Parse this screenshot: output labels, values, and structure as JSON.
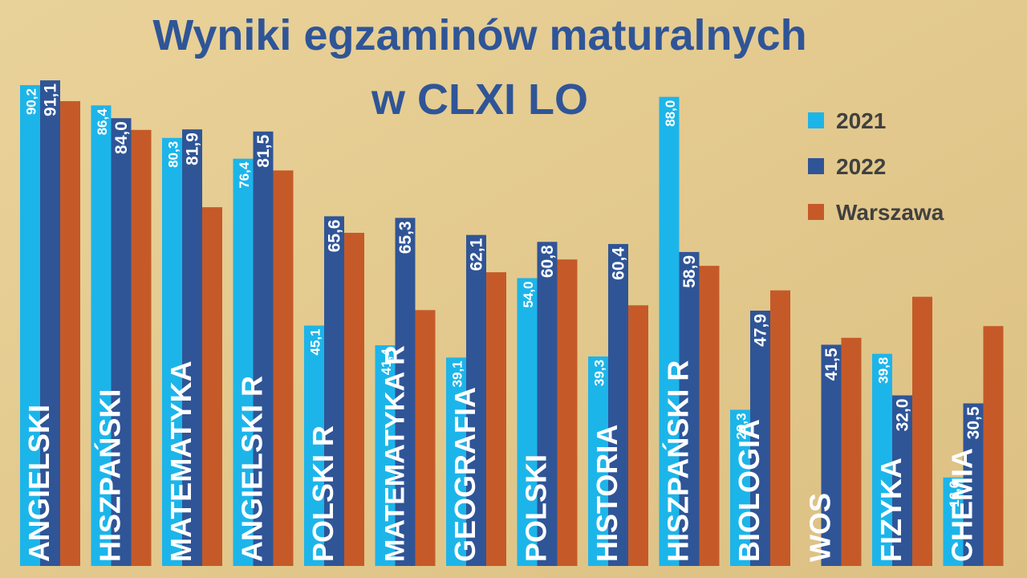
{
  "chart_data": {
    "type": "bar",
    "title_lines": [
      "Wyniki egzaminów maturalnych",
      "w CLXI LO"
    ],
    "categories": [
      "ANGIELSKI",
      "HISZPAŃSKI",
      "MATEMATYKA",
      "ANGIELSKI R",
      "POLSKI R",
      "MATEMATYKA R",
      "GEOGRAFIA",
      "POLSKI",
      "HISTORIA",
      "HISZPAŃSKI R",
      "BIOLOGIA",
      "WOS",
      "FIZYKA",
      "CHEMIA"
    ],
    "series": [
      {
        "name": "2021",
        "color": "#1cb5ea",
        "values": [
          90.2,
          86.4,
          80.3,
          76.4,
          45.1,
          41.4,
          39.1,
          54.0,
          39.3,
          88.0,
          29.3,
          null,
          39.8,
          16.6
        ],
        "value_labels": [
          "90,2",
          "86,4",
          "80,3",
          "76,4",
          "45,1",
          "41,4",
          "39,1",
          "54,0",
          "39,3",
          "88,0",
          "29,3",
          null,
          "39,8",
          "16,6"
        ]
      },
      {
        "name": "2022",
        "color": "#2f5597",
        "values": [
          91.1,
          84.0,
          81.9,
          81.5,
          65.6,
          65.3,
          62.1,
          60.8,
          60.4,
          58.9,
          47.9,
          41.5,
          32.0,
          30.5
        ],
        "value_labels": [
          "91,1",
          "84,0",
          "81,9",
          "81,5",
          "65,6",
          "65,3",
          "62,1",
          "60,8",
          "60,4",
          "58,9",
          "47,9",
          "41,5",
          "32,0",
          "30,5"
        ]
      },
      {
        "name": "Warszawa",
        "color": "#c55a28",
        "values": [
          87.2,
          81.8,
          67.3,
          74.2,
          62.5,
          48.0,
          55.1,
          57.5,
          48.9,
          56.3,
          51.7,
          42.8,
          50.5,
          45.0
        ]
      }
    ],
    "ylim": [
      0,
      100
    ]
  }
}
